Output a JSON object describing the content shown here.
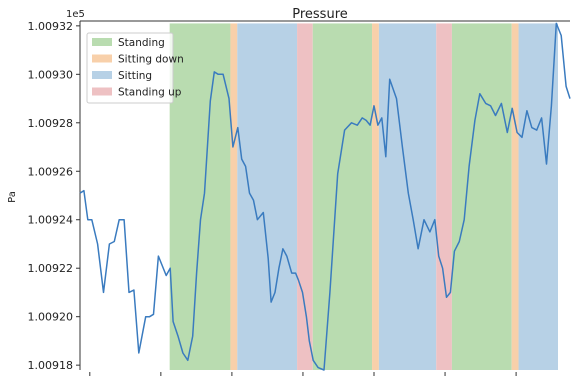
{
  "chart_data": {
    "type": "line",
    "title": "Pressure",
    "ylabel": "Pa",
    "xlabel": "",
    "y_offset_label": "1e5",
    "ylim": [
      1.009178,
      1.009322
    ],
    "xlim": [
      0,
      100
    ],
    "yticks": [
      1.00918,
      1.0092,
      1.00922,
      1.00924,
      1.00926,
      1.00928,
      1.0093,
      1.00932
    ],
    "ytick_labels": [
      "1.00918",
      "1.00920",
      "1.00922",
      "1.00924",
      "1.00926",
      "1.00928",
      "1.00930",
      "1.00932"
    ],
    "grid": false,
    "legend_position": "top-left",
    "legend": [
      {
        "name": "Standing",
        "color": "#b9dcb0"
      },
      {
        "name": "Sitting down",
        "color": "#f8d0aa"
      },
      {
        "name": "Sitting",
        "color": "#b7d1e6"
      },
      {
        "name": "Standing up",
        "color": "#eec1c3"
      }
    ],
    "line_color": "#3a7bbf",
    "shaded_regions": [
      {
        "activity": "Standing",
        "start": 18.3,
        "end": 30.7
      },
      {
        "activity": "Sitting down",
        "start": 30.7,
        "end": 32.1
      },
      {
        "activity": "Sitting",
        "start": 32.1,
        "end": 44.3
      },
      {
        "activity": "Standing up",
        "start": 44.3,
        "end": 47.5
      },
      {
        "activity": "Standing",
        "start": 47.5,
        "end": 59.6
      },
      {
        "activity": "Sitting down",
        "start": 59.6,
        "end": 61.0
      },
      {
        "activity": "Sitting",
        "start": 61.0,
        "end": 72.7
      },
      {
        "activity": "Standing up",
        "start": 72.7,
        "end": 75.9
      },
      {
        "activity": "Standing",
        "start": 75.9,
        "end": 88.1
      },
      {
        "activity": "Sitting down",
        "start": 88.1,
        "end": 89.5
      },
      {
        "activity": "Sitting",
        "start": 89.5,
        "end": 102.0
      }
    ],
    "series": [
      {
        "x": [
          0,
          0.8,
          1.6,
          2.4,
          3.6,
          4.8,
          6.0,
          7.0,
          8.0,
          9.0,
          10.0,
          11.0,
          12.0,
          13.4,
          14.2,
          15.0,
          16.0,
          17.6,
          18.4,
          19.0,
          20.0,
          21.0,
          22.0,
          23.0,
          23.8,
          24.6,
          25.4,
          26.6,
          27.4,
          28.2,
          29.2,
          30.4,
          31.2,
          32.2,
          33.0,
          33.8,
          34.6,
          35.4,
          36.2,
          37.4,
          38.4,
          39.0,
          39.8,
          40.6,
          41.4,
          42.2,
          43.2,
          44.0,
          44.6,
          45.4,
          46.2,
          46.8,
          47.6,
          48.6,
          49.8,
          51.0,
          52.6,
          54.0,
          55.4,
          56.6,
          57.6,
          58.4,
          59.2,
          60.0,
          60.8,
          61.6,
          62.4,
          63.2,
          64.6,
          65.8,
          67.0,
          68.0,
          69.0,
          70.2,
          71.4,
          72.4,
          73.2,
          74.0,
          74.8,
          75.6,
          76.4,
          77.4,
          78.4,
          79.4,
          80.6,
          81.6,
          82.8,
          83.8,
          84.8,
          86.0,
          87.2,
          88.2,
          89.2,
          90.2,
          91.2,
          92.2,
          93.2,
          94.2,
          95.2,
          96.2,
          97.2,
          98.2,
          99.2,
          100.0
        ],
        "values": [
          1.009251,
          1.009252,
          1.00924,
          1.00924,
          1.00923,
          1.00921,
          1.00923,
          1.009231,
          1.00924,
          1.00924,
          1.00921,
          1.009211,
          1.009185,
          1.0092,
          1.0092,
          1.009201,
          1.009225,
          1.009217,
          1.00922,
          1.009198,
          1.009192,
          1.009185,
          1.009182,
          1.009192,
          1.009218,
          1.00924,
          1.009251,
          1.009289,
          1.009301,
          1.0093,
          1.0093,
          1.00929,
          1.00927,
          1.009278,
          1.009265,
          1.009262,
          1.009251,
          1.009248,
          1.00924,
          1.009243,
          1.009224,
          1.009206,
          1.00921,
          1.00922,
          1.009228,
          1.009225,
          1.009218,
          1.009218,
          1.009215,
          1.00921,
          1.0092,
          1.00919,
          1.009182,
          1.009179,
          1.009178,
          1.00921,
          1.009259,
          1.009277,
          1.00928,
          1.009279,
          1.009282,
          1.009281,
          1.009279,
          1.009287,
          1.009279,
          1.009282,
          1.009266,
          1.009298,
          1.00929,
          1.00927,
          1.009251,
          1.00924,
          1.009228,
          1.00924,
          1.009235,
          1.00924,
          1.009225,
          1.00922,
          1.009208,
          1.00921,
          1.009227,
          1.009231,
          1.00924,
          1.009262,
          1.009281,
          1.009292,
          1.009288,
          1.009287,
          1.009283,
          1.009288,
          1.009276,
          1.009286,
          1.009276,
          1.009274,
          1.009285,
          1.009278,
          1.009277,
          1.009282,
          1.009263,
          1.009287,
          1.009321,
          1.009316,
          1.009295,
          1.00929
        ]
      }
    ]
  }
}
